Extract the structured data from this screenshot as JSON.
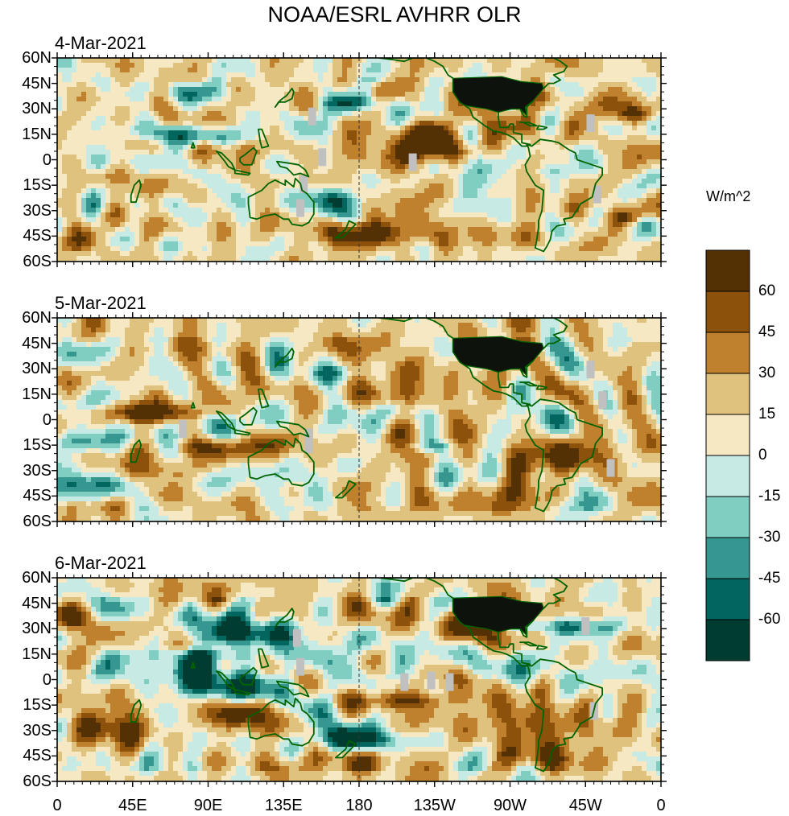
{
  "chart_data": {
    "type": "heatmap",
    "title": "NOAA/ESRL AVHRR OLR",
    "units": "W/m^2",
    "panels": [
      {
        "date": "4-Mar-2021"
      },
      {
        "date": "5-Mar-2021"
      },
      {
        "date": "6-Mar-2021"
      }
    ],
    "y_tick_labels": [
      "60N",
      "45N",
      "30N",
      "15N",
      "0",
      "15S",
      "30S",
      "45S",
      "60S"
    ],
    "x_tick_labels": [
      "0",
      "45E",
      "90E",
      "135E",
      "180",
      "135W",
      "90W",
      "45W",
      "0"
    ],
    "lon_range": [
      0,
      360
    ],
    "lat_range": [
      -60,
      60
    ],
    "colorbar": {
      "levels": [
        "60",
        "45",
        "30",
        "15",
        "0",
        "-15",
        "-30",
        "-45",
        "-60"
      ],
      "colors": [
        "#543005",
        "#8c510a",
        "#bf812d",
        "#dfc27d",
        "#f6e8c3",
        "#c7eae5",
        "#80cdc1",
        "#35978f",
        "#01665e",
        "#003c30"
      ]
    },
    "missing_color": "#c0c0c0",
    "coast_color": "#006400"
  }
}
